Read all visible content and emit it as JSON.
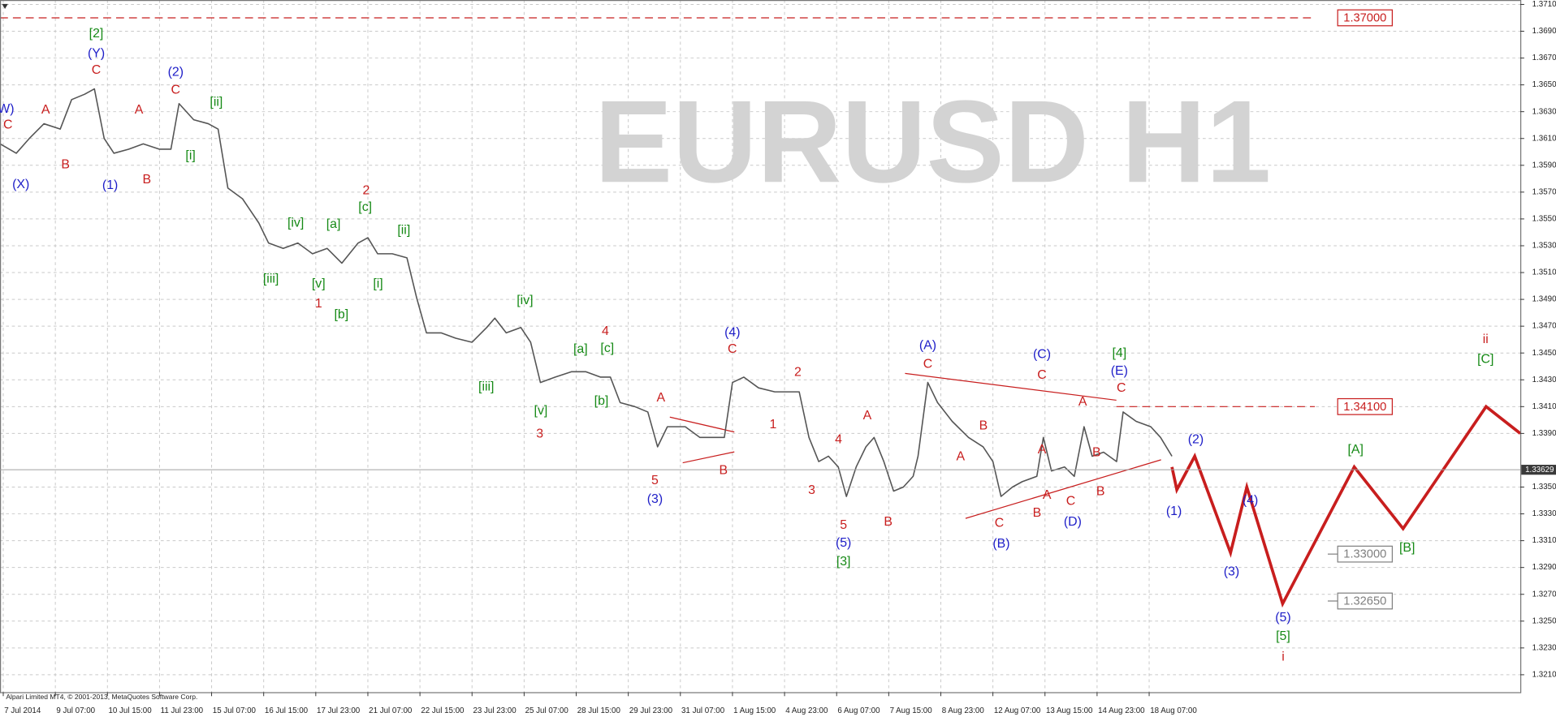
{
  "chart_data": {
    "type": "line",
    "watermark": "EURUSD H1",
    "footer": "Alpari Limited MT4, © 2001-2013, MetaQuotes Software Corp.",
    "color": "#555555",
    "grid": true,
    "xlim": [
      0,
      934
    ],
    "ylim": [
      1.3197,
      1.37133
    ],
    "xticks": [
      {
        "value": 2,
        "label": "7 Jul 2014"
      },
      {
        "value": 34,
        "label": "9 Jul 07:00"
      },
      {
        "value": 66,
        "label": "10 Jul 15:00"
      },
      {
        "value": 98,
        "label": "11 Jul 23:00"
      },
      {
        "value": 130,
        "label": "15 Jul 07:00"
      },
      {
        "value": 162,
        "label": "16 Jul 15:00"
      },
      {
        "value": 194,
        "label": "17 Jul 23:00"
      },
      {
        "value": 226,
        "label": "21 Jul 07:00"
      },
      {
        "value": 258,
        "label": "22 Jul 15:00"
      },
      {
        "value": 290,
        "label": "23 Jul 23:00"
      },
      {
        "value": 322,
        "label": "25 Jul 07:00"
      },
      {
        "value": 354,
        "label": "28 Jul 15:00"
      },
      {
        "value": 386,
        "label": "29 Jul 23:00"
      },
      {
        "value": 418,
        "label": "31 Jul 07:00"
      },
      {
        "value": 450,
        "label": "1 Aug 15:00"
      },
      {
        "value": 482,
        "label": "4 Aug 23:00"
      },
      {
        "value": 514,
        "label": "6 Aug 07:00"
      },
      {
        "value": 546,
        "label": "7 Aug 15:00"
      },
      {
        "value": 578,
        "label": "8 Aug 23:00"
      },
      {
        "value": 610,
        "label": "12 Aug 07:00"
      },
      {
        "value": 642,
        "label": "13 Aug 15:00"
      },
      {
        "value": 674,
        "label": "14 Aug 23:00"
      },
      {
        "value": 706,
        "label": "18 Aug 07:00"
      }
    ],
    "yticks": [
      {
        "value": 1.371,
        "label": "1.37100"
      },
      {
        "value": 1.369,
        "label": "1.36900"
      },
      {
        "value": 1.367,
        "label": "1.36700"
      },
      {
        "value": 1.365,
        "label": "1.36500"
      },
      {
        "value": 1.363,
        "label": "1.36300"
      },
      {
        "value": 1.361,
        "label": "1.36100"
      },
      {
        "value": 1.359,
        "label": "1.35900"
      },
      {
        "value": 1.357,
        "label": "1.35700"
      },
      {
        "value": 1.355,
        "label": "1.35500"
      },
      {
        "value": 1.353,
        "label": "1.35300"
      },
      {
        "value": 1.351,
        "label": "1.35100"
      },
      {
        "value": 1.349,
        "label": "1.34900"
      },
      {
        "value": 1.347,
        "label": "1.34700"
      },
      {
        "value": 1.345,
        "label": "1.34500"
      },
      {
        "value": 1.343,
        "label": "1.34300"
      },
      {
        "value": 1.341,
        "label": "1.34100"
      },
      {
        "value": 1.339,
        "label": "1.33900"
      },
      {
        "value": 1.335,
        "label": "1.33500"
      },
      {
        "value": 1.333,
        "label": "1.33300"
      },
      {
        "value": 1.331,
        "label": "1.33100"
      },
      {
        "value": 1.329,
        "label": "1.32900"
      },
      {
        "value": 1.327,
        "label": "1.32700"
      },
      {
        "value": 1.325,
        "label": "1.32500"
      },
      {
        "value": 1.323,
        "label": "1.32300"
      },
      {
        "value": 1.321,
        "label": "1.32100"
      }
    ],
    "x": [
      0,
      10,
      18,
      27,
      37,
      44,
      52,
      58,
      64,
      70,
      79,
      88,
      98,
      105,
      110,
      119,
      128,
      134,
      140,
      149,
      159,
      165,
      174,
      183,
      192,
      201,
      210,
      220,
      226,
      232,
      241,
      250,
      256,
      262,
      271,
      280,
      290,
      299,
      304,
      311,
      320,
      326,
      332,
      341,
      351,
      360,
      369,
      375,
      381,
      390,
      398,
      404,
      410,
      421,
      430,
      439,
      445,
      450,
      457,
      466,
      476,
      485,
      491,
      497,
      503,
      509,
      515,
      520,
      526,
      532,
      537,
      543,
      549,
      555,
      561,
      564,
      570,
      576,
      585,
      595,
      604,
      610,
      615,
      622,
      628,
      637,
      641,
      646,
      654,
      660,
      666,
      671,
      678,
      686,
      690,
      698,
      707,
      713,
      720
    ],
    "values": [
      1.3606,
      1.3599,
      1.361,
      1.3621,
      1.3617,
      1.3639,
      1.3643,
      1.3647,
      1.361,
      1.3599,
      1.3602,
      1.3606,
      1.3602,
      1.3602,
      1.3636,
      1.3624,
      1.3621,
      1.3617,
      1.3573,
      1.3565,
      1.3547,
      1.3532,
      1.3528,
      1.3532,
      1.3524,
      1.3528,
      1.3517,
      1.3532,
      1.3536,
      1.3524,
      1.3524,
      1.3521,
      1.3491,
      1.3465,
      1.3465,
      1.3461,
      1.3458,
      1.3469,
      1.3476,
      1.3465,
      1.3469,
      1.3458,
      1.3428,
      1.3432,
      1.3436,
      1.3436,
      1.3432,
      1.3432,
      1.3413,
      1.341,
      1.3406,
      1.338,
      1.3395,
      1.3395,
      1.3387,
      1.3387,
      1.3387,
      1.3428,
      1.3432,
      1.3424,
      1.3421,
      1.3421,
      1.3421,
      1.3387,
      1.3369,
      1.3373,
      1.3365,
      1.3343,
      1.3365,
      1.338,
      1.3387,
      1.3369,
      1.3347,
      1.335,
      1.3358,
      1.3373,
      1.3428,
      1.3413,
      1.3399,
      1.3387,
      1.338,
      1.3369,
      1.3343,
      1.335,
      1.3354,
      1.3358,
      1.3387,
      1.3362,
      1.3365,
      1.3358,
      1.3395,
      1.3373,
      1.3376,
      1.3369,
      1.3406,
      1.3399,
      1.3395,
      1.3387,
      1.3373
    ],
    "projection": {
      "color": "#c81e1e",
      "x": [
        720,
        723,
        734,
        756,
        766,
        788,
        832,
        862,
        913,
        934
      ],
      "values": [
        1.3365,
        1.3348,
        1.3373,
        1.3301,
        1.335,
        1.3263,
        1.3365,
        1.3319,
        1.341,
        1.339
      ]
    },
    "current_price": {
      "value": 1.33629,
      "label": "1.33629"
    },
    "levels": [
      {
        "value": 1.37,
        "label": "1.37000",
        "color": "#c81e1e"
      },
      {
        "value": 1.341,
        "label": "1.34100",
        "color": "#c81e1e"
      },
      {
        "value": 1.33,
        "label": "1.33000",
        "color": "#808080"
      },
      {
        "value": 1.3265,
        "label": "1.32650",
        "color": "#808080"
      }
    ],
    "wave_labels": [
      "W)",
      "C",
      "(X)",
      "A",
      "B",
      "[2]",
      "(Y)",
      "C",
      "(1)",
      "A",
      "B",
      "(2)",
      "C",
      "[ii]",
      "[i]",
      "[iv]",
      "[a]",
      "[c]",
      "2",
      "[ii]",
      "[iii]",
      "[v]",
      "1",
      "[i]",
      "[b]",
      "[iv]",
      "[iii]",
      "[v]",
      "3",
      "4",
      "[a]",
      "[c]",
      "[b]",
      "A",
      "5",
      "(3)",
      "B",
      "(4)",
      "C",
      "2",
      "1",
      "4",
      "A",
      "3",
      "5",
      "(5)",
      "[3]",
      "B",
      "(A)",
      "C",
      "B",
      "A",
      "A",
      "C",
      "(B)",
      "A",
      "B",
      "(C)",
      "C",
      "A",
      "B",
      "C",
      "(D)",
      "B",
      "[4]",
      "(E)",
      "C",
      "(2)",
      "(1)",
      "(4)",
      "(3)",
      "(5)",
      "[5]",
      "i",
      "[A]",
      "[B]",
      "ii",
      "[C]"
    ]
  }
}
